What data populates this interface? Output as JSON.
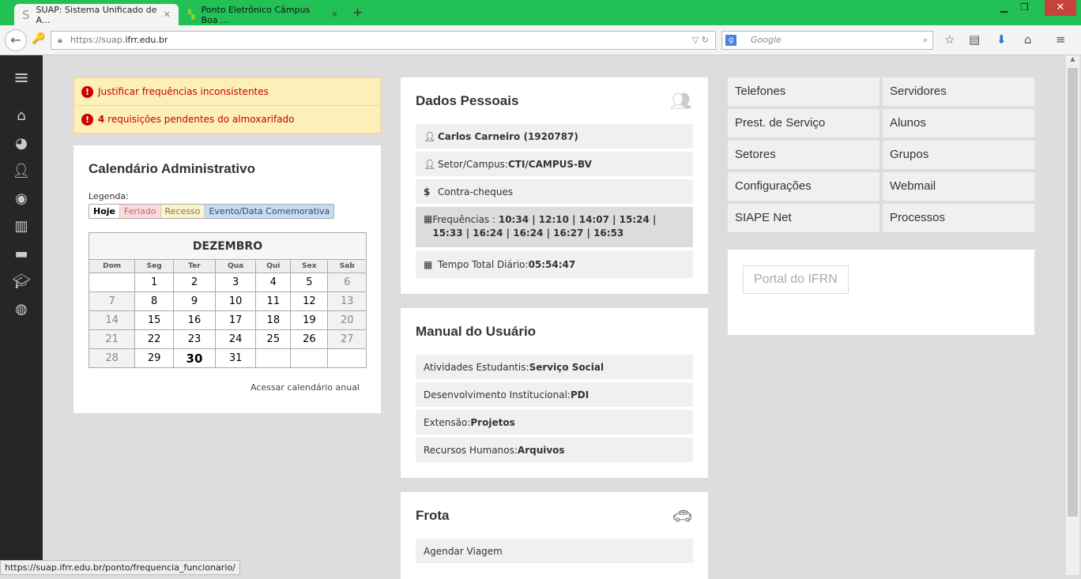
{
  "browser": {
    "tabs": [
      {
        "title": "SUAP: Sistema Unificado de A..."
      },
      {
        "title": "Ponto Eletrônico Câmpus Boa ..."
      }
    ],
    "url_prefix": "https://suap.",
    "url_domain": "ifrr.edu.br",
    "search_placeholder": "Google"
  },
  "alerts": [
    {
      "text": "Justificar frequências inconsistentes"
    },
    {
      "count": "4",
      "text": " requisições pendentes do almoxarifado"
    }
  ],
  "calendar": {
    "title": "Calendário Administrativo",
    "legend_label": "Legenda:",
    "legend": [
      "Hoje",
      "Feriado",
      "Recesso",
      "Evento/Data Comemorativa"
    ],
    "month": "DEZEMBRO",
    "weekdays": [
      "Dom",
      "Seg",
      "Ter",
      "Qua",
      "Qui",
      "Sex",
      "Sab"
    ],
    "weeks": [
      [
        "",
        "1",
        "2",
        "3",
        "4",
        "5",
        "6"
      ],
      [
        "7",
        "8",
        "9",
        "10",
        "11",
        "12",
        "13"
      ],
      [
        "14",
        "15",
        "16",
        "17",
        "18",
        "19",
        "20"
      ],
      [
        "21",
        "22",
        "23",
        "24",
        "25",
        "26",
        "27"
      ],
      [
        "28",
        "29",
        "30",
        "31",
        "",
        "",
        ""
      ]
    ],
    "today": "30",
    "annual_link": "Acessar calendário anual"
  },
  "personal": {
    "title": "Dados Pessoais",
    "name": "Carlos Carneiro (1920787)",
    "sector_label": "Setor/Campus: ",
    "sector": "CTI/CAMPUS-BV",
    "paychecks": "Contra-cheques",
    "freq_label": "Frequências : ",
    "freq": "10:34 | 12:10 | 14:07 | 15:24 | 15:33 | 16:24 | 16:24 | 16:27 | 16:53",
    "total_label": "Tempo Total Diário: ",
    "total": "05:54:47"
  },
  "manual": {
    "title": "Manual do Usuário",
    "items": [
      {
        "label": "Atividades Estudantis: ",
        "value": "Serviço Social"
      },
      {
        "label": "Desenvolvimento Institucional: ",
        "value": "PDI"
      },
      {
        "label": "Extensão: ",
        "value": "Projetos"
      },
      {
        "label": "Recursos Humanos: ",
        "value": "Arquivos"
      }
    ]
  },
  "fleet": {
    "title": "Frota",
    "items": [
      "Agendar Viagem"
    ]
  },
  "links": [
    "Telefones",
    "Servidores",
    "Prest. de Serviço",
    "Alunos",
    "Setores",
    "Grupos",
    "Configurações",
    "Webmail",
    "SIAPE Net",
    "Processos"
  ],
  "portal": "Portal do IFRN",
  "status_url": "https://suap.ifrr.edu.br/ponto/frequencia_funcionario/"
}
